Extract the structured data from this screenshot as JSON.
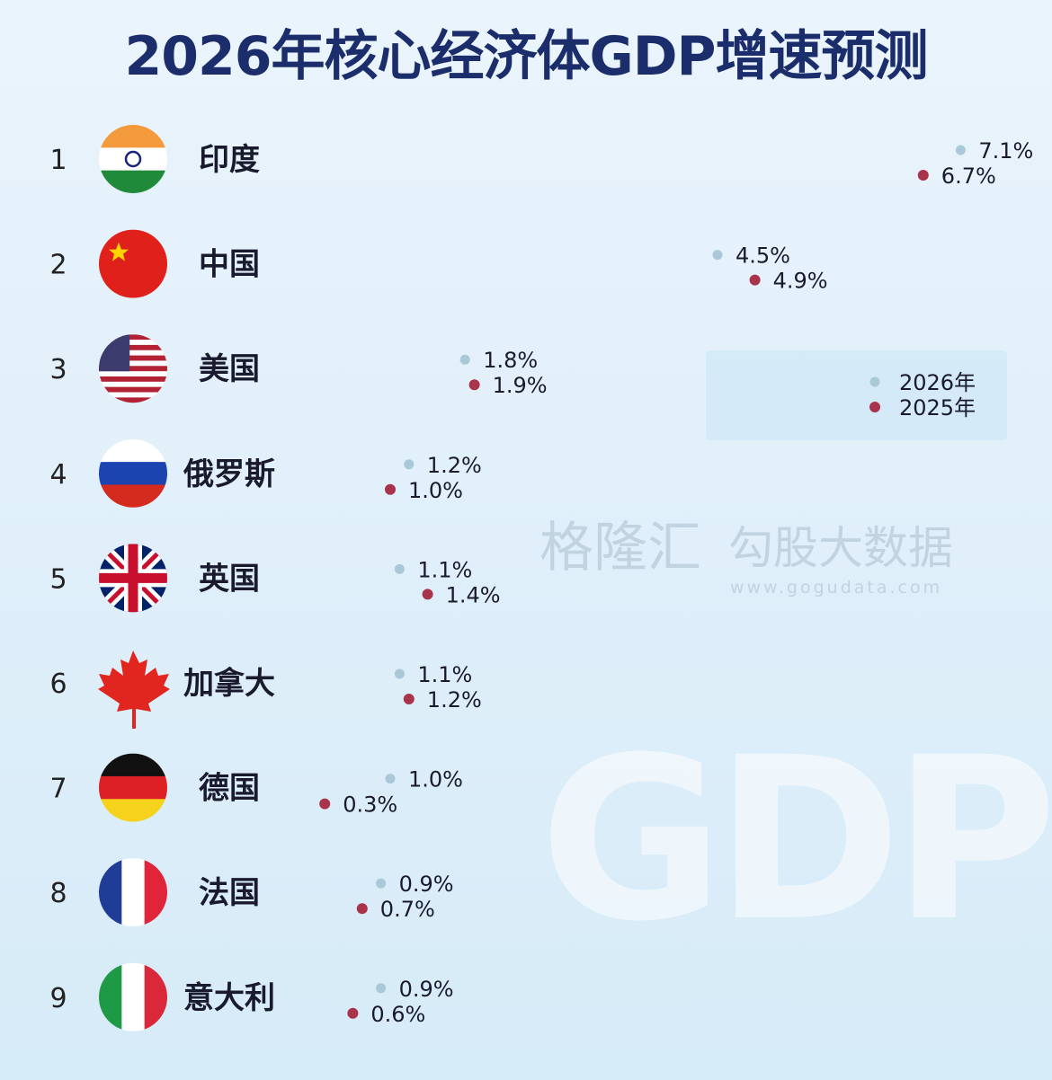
{
  "chart_data": {
    "type": "bar",
    "title": "2026年核心经济体GDP增速预测",
    "unit": "%",
    "categories": [
      "印度",
      "中国",
      "美国",
      "俄罗斯",
      "英国",
      "加拿大",
      "德国",
      "法国",
      "意大利"
    ],
    "ranks": [
      "1",
      "2",
      "3",
      "4",
      "5",
      "6",
      "7",
      "8",
      "9"
    ],
    "flags": [
      "india-flag-icon",
      "china-flag-icon",
      "usa-flag-icon",
      "russia-flag-icon",
      "uk-flag-icon",
      "canada-maple-leaf-icon",
      "germany-flag-icon",
      "france-flag-icon",
      "italy-flag-icon"
    ],
    "series": [
      {
        "name": "2026年",
        "color": "#a9c9d8",
        "values": [
          7.1,
          4.5,
          1.8,
          1.2,
          1.1,
          1.1,
          1.0,
          0.9,
          0.9
        ]
      },
      {
        "name": "2025年",
        "color": "#a8334a",
        "values": [
          6.7,
          4.9,
          1.9,
          1.0,
          1.4,
          1.2,
          0.3,
          0.7,
          0.6
        ]
      }
    ],
    "legend": "right",
    "grid": false
  },
  "watermark": {
    "logo1": "格隆汇",
    "logo2": "勾股大数据",
    "url": "www.gogudata.com",
    "background_text": "GDP"
  }
}
